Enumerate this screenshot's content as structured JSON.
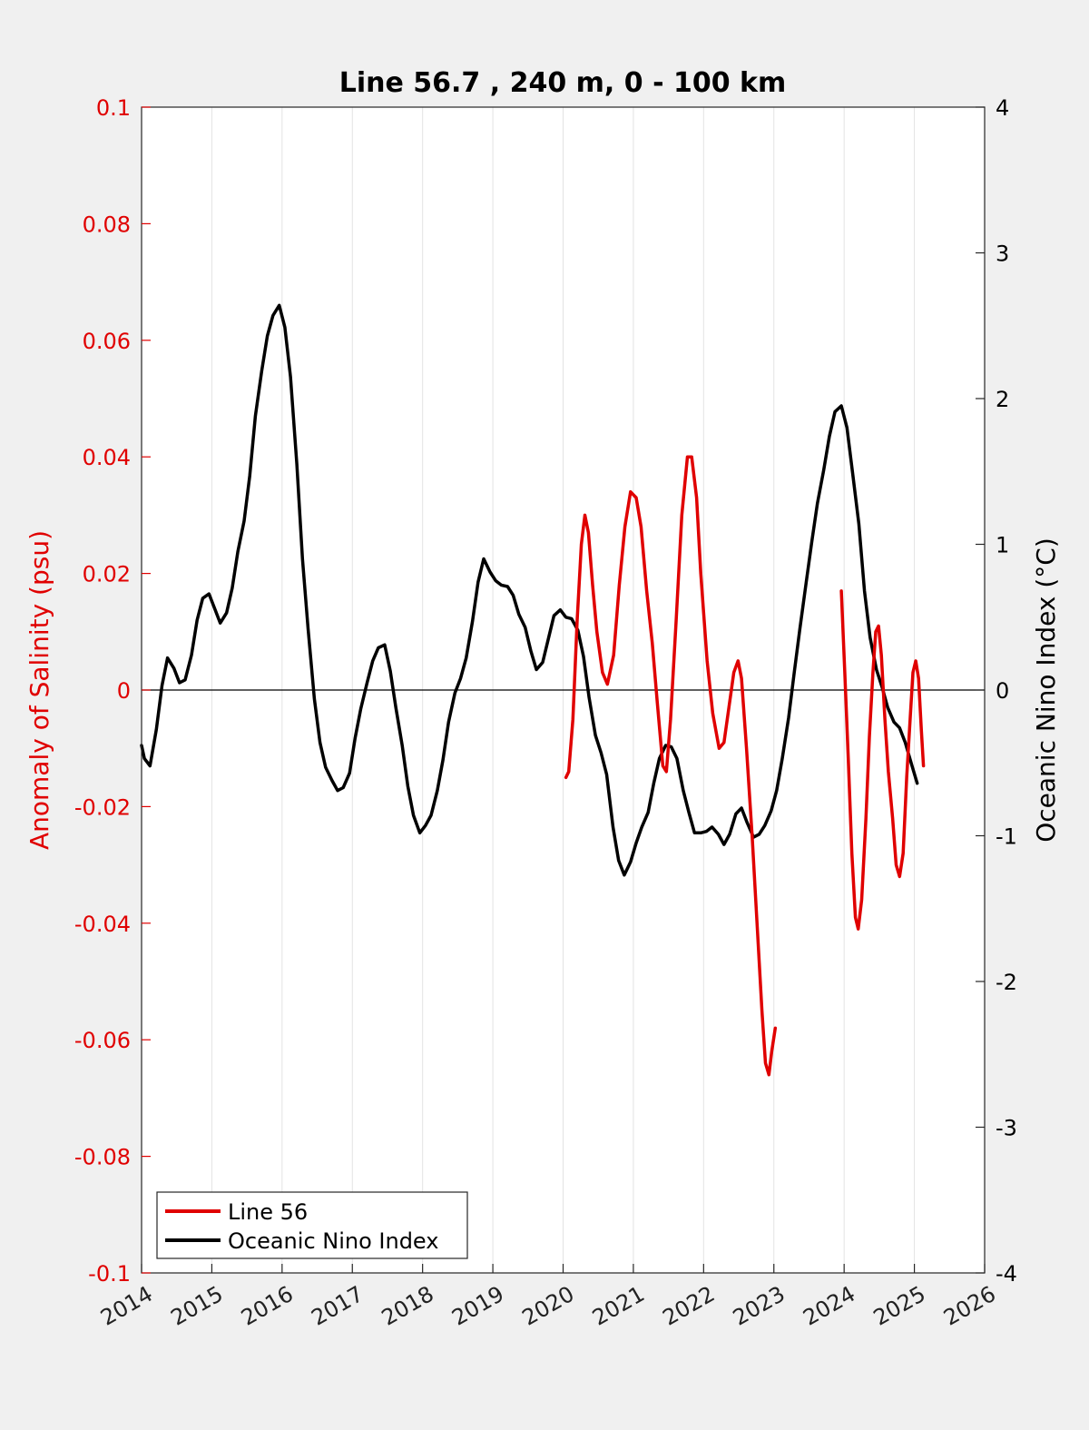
{
  "chart_data": {
    "type": "line",
    "title": "Line 56.7 , 240 m, 0 - 100 km",
    "xlabel": "",
    "ylabel_left": "Anomaly of Salinity (psu)",
    "ylabel_right": "Oceanic Nino Index (°C)",
    "xlim": [
      2014,
      2026
    ],
    "ylim_left": [
      -0.1,
      0.1
    ],
    "ylim_right": [
      -4,
      4
    ],
    "x_ticks": [
      "2014",
      "2015",
      "2016",
      "2017",
      "2018",
      "2019",
      "2020",
      "2021",
      "2022",
      "2023",
      "2024",
      "2025",
      "2026"
    ],
    "y_ticks_left": [
      "0.1",
      "0.08",
      "0.06",
      "0.04",
      "0.02",
      "0",
      "-0.02",
      "-0.04",
      "-0.06",
      "-0.08",
      "-0.1"
    ],
    "y_ticks_right": [
      "4",
      "3",
      "2",
      "1",
      "0",
      "-1",
      "-2",
      "-3",
      "-4"
    ],
    "grid": "vertical",
    "legend_position": "bottom-left",
    "colors": {
      "line56": "#e00000",
      "oni": "#000000",
      "left_axis": "#e00000",
      "right_axis": "#000000"
    },
    "series": [
      {
        "name": "Line 56",
        "axis": "left",
        "color": "#e00000",
        "segments": [
          [
            [
              2020.04,
              -0.015
            ],
            [
              2020.08,
              -0.014
            ],
            [
              2020.14,
              -0.005
            ],
            [
              2020.2,
              0.012
            ],
            [
              2020.26,
              0.025
            ],
            [
              2020.31,
              0.03
            ],
            [
              2020.36,
              0.027
            ],
            [
              2020.42,
              0.018
            ],
            [
              2020.48,
              0.01
            ],
            [
              2020.56,
              0.003
            ],
            [
              2020.63,
              0.001
            ],
            [
              2020.72,
              0.006
            ],
            [
              2020.8,
              0.018
            ],
            [
              2020.88,
              0.028
            ],
            [
              2020.96,
              0.034
            ],
            [
              2021.04,
              0.033
            ],
            [
              2021.11,
              0.028
            ],
            [
              2021.19,
              0.017
            ],
            [
              2021.27,
              0.008
            ],
            [
              2021.34,
              -0.002
            ],
            [
              2021.42,
              -0.013
            ],
            [
              2021.47,
              -0.014
            ],
            [
              2021.53,
              -0.005
            ],
            [
              2021.61,
              0.012
            ],
            [
              2021.69,
              0.03
            ],
            [
              2021.77,
              0.04
            ],
            [
              2021.83,
              0.04
            ],
            [
              2021.9,
              0.033
            ],
            [
              2021.96,
              0.02
            ],
            [
              2022.05,
              0.005
            ],
            [
              2022.13,
              -0.004
            ],
            [
              2022.22,
              -0.01
            ],
            [
              2022.29,
              -0.009
            ],
            [
              2022.36,
              -0.003
            ],
            [
              2022.43,
              0.003
            ],
            [
              2022.49,
              0.005
            ],
            [
              2022.54,
              0.002
            ],
            [
              2022.61,
              -0.01
            ],
            [
              2022.69,
              -0.025
            ],
            [
              2022.76,
              -0.04
            ],
            [
              2022.83,
              -0.055
            ],
            [
              2022.88,
              -0.064
            ],
            [
              2022.93,
              -0.066
            ],
            [
              2022.97,
              -0.062
            ],
            [
              2023.02,
              -0.058
            ]
          ],
          [
            [
              2023.96,
              0.017
            ],
            [
              2024.01,
              0.003
            ],
            [
              2024.06,
              -0.012
            ],
            [
              2024.11,
              -0.028
            ],
            [
              2024.16,
              -0.039
            ],
            [
              2024.2,
              -0.041
            ],
            [
              2024.25,
              -0.036
            ],
            [
              2024.31,
              -0.022
            ],
            [
              2024.36,
              -0.008
            ],
            [
              2024.41,
              0.003
            ],
            [
              2024.45,
              0.01
            ],
            [
              2024.49,
              0.011
            ],
            [
              2024.53,
              0.006
            ],
            [
              2024.58,
              -0.005
            ],
            [
              2024.63,
              -0.014
            ],
            [
              2024.69,
              -0.022
            ],
            [
              2024.74,
              -0.03
            ],
            [
              2024.79,
              -0.032
            ],
            [
              2024.84,
              -0.028
            ],
            [
              2024.89,
              -0.015
            ],
            [
              2024.94,
              -0.005
            ],
            [
              2024.98,
              0.003
            ],
            [
              2025.02,
              0.005
            ],
            [
              2025.06,
              0.002
            ],
            [
              2025.1,
              -0.007
            ],
            [
              2025.13,
              -0.013
            ]
          ]
        ]
      },
      {
        "name": "Oceanic Nino Index",
        "axis": "right",
        "color": "#000000",
        "segments": [
          [
            [
              2014.0,
              -0.38
            ],
            [
              2014.04,
              -0.47
            ],
            [
              2014.12,
              -0.52
            ],
            [
              2014.21,
              -0.27
            ],
            [
              2014.29,
              0.03
            ],
            [
              2014.37,
              0.22
            ],
            [
              2014.46,
              0.15
            ],
            [
              2014.54,
              0.05
            ],
            [
              2014.62,
              0.07
            ],
            [
              2014.71,
              0.24
            ],
            [
              2014.79,
              0.48
            ],
            [
              2014.87,
              0.63
            ],
            [
              2014.96,
              0.66
            ],
            [
              2015.04,
              0.56
            ],
            [
              2015.12,
              0.46
            ],
            [
              2015.21,
              0.53
            ],
            [
              2015.29,
              0.7
            ],
            [
              2015.37,
              0.95
            ],
            [
              2015.46,
              1.16
            ],
            [
              2015.54,
              1.47
            ],
            [
              2015.62,
              1.88
            ],
            [
              2015.71,
              2.19
            ],
            [
              2015.79,
              2.43
            ],
            [
              2015.87,
              2.57
            ],
            [
              2015.96,
              2.64
            ],
            [
              2016.04,
              2.49
            ],
            [
              2016.12,
              2.15
            ],
            [
              2016.21,
              1.55
            ],
            [
              2016.29,
              0.9
            ],
            [
              2016.37,
              0.42
            ],
            [
              2016.46,
              -0.06
            ],
            [
              2016.54,
              -0.36
            ],
            [
              2016.62,
              -0.53
            ],
            [
              2016.71,
              -0.62
            ],
            [
              2016.79,
              -0.69
            ],
            [
              2016.87,
              -0.67
            ],
            [
              2016.96,
              -0.57
            ],
            [
              2017.04,
              -0.33
            ],
            [
              2017.12,
              -0.13
            ],
            [
              2017.21,
              0.05
            ],
            [
              2017.29,
              0.2
            ],
            [
              2017.37,
              0.29
            ],
            [
              2017.46,
              0.31
            ],
            [
              2017.54,
              0.13
            ],
            [
              2017.62,
              -0.12
            ],
            [
              2017.71,
              -0.38
            ],
            [
              2017.79,
              -0.66
            ],
            [
              2017.87,
              -0.86
            ],
            [
              2017.96,
              -0.98
            ],
            [
              2018.04,
              -0.93
            ],
            [
              2018.12,
              -0.86
            ],
            [
              2018.21,
              -0.69
            ],
            [
              2018.29,
              -0.48
            ],
            [
              2018.37,
              -0.22
            ],
            [
              2018.46,
              -0.02
            ],
            [
              2018.54,
              0.08
            ],
            [
              2018.62,
              0.22
            ],
            [
              2018.71,
              0.47
            ],
            [
              2018.79,
              0.74
            ],
            [
              2018.87,
              0.9
            ],
            [
              2018.96,
              0.81
            ],
            [
              2019.04,
              0.75
            ],
            [
              2019.12,
              0.72
            ],
            [
              2019.21,
              0.71
            ],
            [
              2019.29,
              0.65
            ],
            [
              2019.37,
              0.52
            ],
            [
              2019.46,
              0.43
            ],
            [
              2019.54,
              0.27
            ],
            [
              2019.62,
              0.14
            ],
            [
              2019.71,
              0.19
            ],
            [
              2019.79,
              0.35
            ],
            [
              2019.87,
              0.51
            ],
            [
              2019.96,
              0.55
            ],
            [
              2020.04,
              0.5
            ],
            [
              2020.12,
              0.49
            ],
            [
              2020.21,
              0.41
            ],
            [
              2020.29,
              0.23
            ],
            [
              2020.37,
              -0.05
            ],
            [
              2020.46,
              -0.31
            ],
            [
              2020.54,
              -0.43
            ],
            [
              2020.62,
              -0.58
            ],
            [
              2020.71,
              -0.94
            ],
            [
              2020.79,
              -1.17
            ],
            [
              2020.87,
              -1.27
            ],
            [
              2020.96,
              -1.18
            ],
            [
              2021.04,
              -1.05
            ],
            [
              2021.12,
              -0.94
            ],
            [
              2021.21,
              -0.84
            ],
            [
              2021.29,
              -0.64
            ],
            [
              2021.37,
              -0.47
            ],
            [
              2021.46,
              -0.38
            ],
            [
              2021.54,
              -0.39
            ],
            [
              2021.62,
              -0.47
            ],
            [
              2021.71,
              -0.69
            ],
            [
              2021.79,
              -0.84
            ],
            [
              2021.87,
              -0.98
            ],
            [
              2021.96,
              -0.98
            ],
            [
              2022.04,
              -0.97
            ],
            [
              2022.12,
              -0.94
            ],
            [
              2022.21,
              -0.99
            ],
            [
              2022.29,
              -1.06
            ],
            [
              2022.37,
              -0.99
            ],
            [
              2022.46,
              -0.85
            ],
            [
              2022.54,
              -0.81
            ],
            [
              2022.62,
              -0.91
            ],
            [
              2022.71,
              -1.01
            ],
            [
              2022.79,
              -0.99
            ],
            [
              2022.87,
              -0.93
            ],
            [
              2022.96,
              -0.83
            ],
            [
              2023.04,
              -0.69
            ],
            [
              2023.12,
              -0.47
            ],
            [
              2023.21,
              -0.19
            ],
            [
              2023.29,
              0.12
            ],
            [
              2023.37,
              0.42
            ],
            [
              2023.46,
              0.74
            ],
            [
              2023.54,
              1.02
            ],
            [
              2023.62,
              1.28
            ],
            [
              2023.71,
              1.51
            ],
            [
              2023.79,
              1.74
            ],
            [
              2023.87,
              1.91
            ],
            [
              2023.96,
              1.95
            ],
            [
              2024.04,
              1.8
            ],
            [
              2024.12,
              1.49
            ],
            [
              2024.21,
              1.14
            ],
            [
              2024.29,
              0.68
            ],
            [
              2024.37,
              0.36
            ],
            [
              2024.46,
              0.14
            ],
            [
              2024.54,
              0.02
            ],
            [
              2024.62,
              -0.12
            ],
            [
              2024.71,
              -0.22
            ],
            [
              2024.79,
              -0.26
            ],
            [
              2024.87,
              -0.36
            ],
            [
              2024.96,
              -0.51
            ],
            [
              2025.04,
              -0.64
            ]
          ]
        ]
      }
    ],
    "legend": [
      "Line 56",
      "Oceanic Nino Index"
    ]
  }
}
